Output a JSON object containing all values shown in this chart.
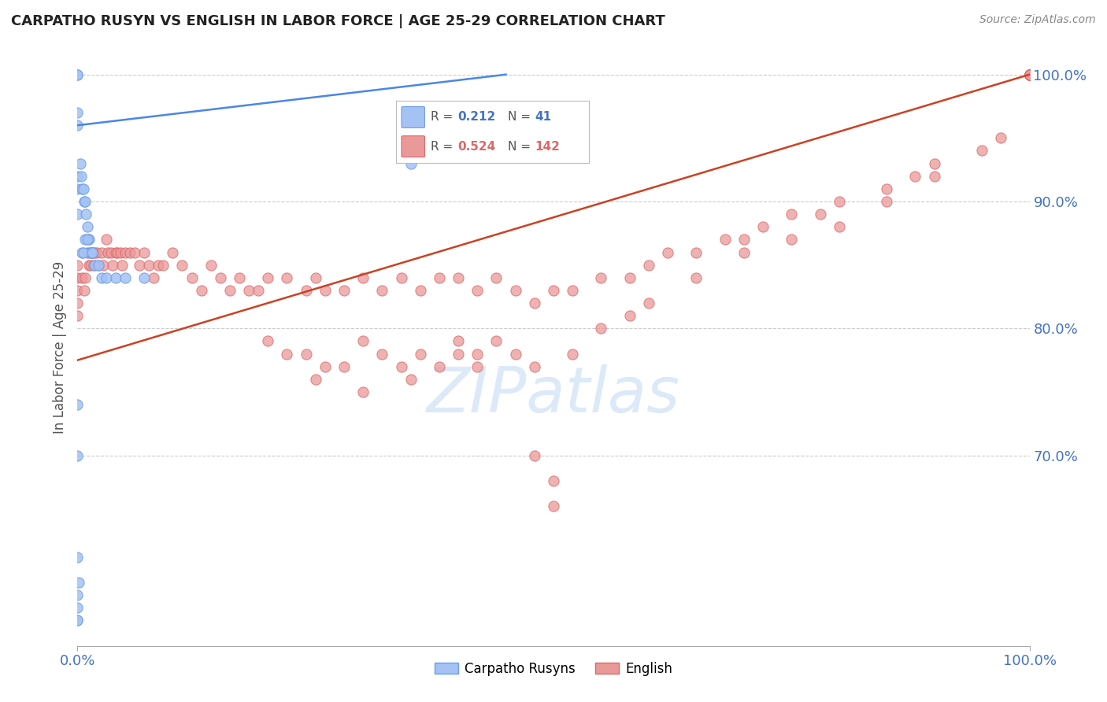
{
  "title": "CARPATHO RUSYN VS ENGLISH IN LABOR FORCE | AGE 25-29 CORRELATION CHART",
  "source": "Source: ZipAtlas.com",
  "ylabel": "In Labor Force | Age 25-29",
  "xlim": [
    0.0,
    1.0
  ],
  "ylim": [
    0.55,
    1.02
  ],
  "ytick_labels": [
    "100.0%",
    "90.0%",
    "80.0%",
    "70.0%"
  ],
  "ytick_values": [
    1.0,
    0.9,
    0.8,
    0.7
  ],
  "legend_blue_R": "0.212",
  "legend_blue_N": "41",
  "legend_pink_R": "0.524",
  "legend_pink_N": "142",
  "legend_label_blue": "Carpatho Rusyns",
  "legend_label_pink": "English",
  "blue_color": "#a4c2f4",
  "pink_color": "#ea9999",
  "blue_edge_color": "#6d9eeb",
  "pink_edge_color": "#e06666",
  "blue_line_color": "#4a86e8",
  "pink_line_color": "#cc4125",
  "axis_label_color": "#4472c4",
  "watermark_color": "#dce9f8",
  "background_color": "#ffffff",
  "grid_color": "#cccccc",
  "title_color": "#222222",
  "blue_x": [
    0.0,
    0.0,
    0.0,
    0.0,
    0.0,
    0.0,
    0.0,
    0.003,
    0.004,
    0.005,
    0.006,
    0.007,
    0.008,
    0.009,
    0.01,
    0.011,
    0.012,
    0.013,
    0.014,
    0.015,
    0.018,
    0.022,
    0.025,
    0.03,
    0.04,
    0.05,
    0.07,
    0.0,
    0.0,
    0.0,
    0.001,
    0.35,
    0.0,
    0.0,
    0.0,
    0.0,
    0.005,
    0.006,
    0.008,
    0.01,
    0.015
  ],
  "blue_y": [
    1.0,
    1.0,
    0.97,
    0.96,
    0.92,
    0.91,
    0.89,
    0.93,
    0.92,
    0.91,
    0.91,
    0.9,
    0.9,
    0.89,
    0.88,
    0.87,
    0.87,
    0.86,
    0.86,
    0.86,
    0.85,
    0.85,
    0.84,
    0.84,
    0.84,
    0.84,
    0.84,
    0.74,
    0.7,
    0.62,
    0.6,
    0.93,
    0.57,
    0.57,
    0.58,
    0.59,
    0.86,
    0.86,
    0.87,
    0.87,
    0.86
  ],
  "blue_line_x": [
    0.0,
    0.45
  ],
  "blue_line_y": [
    0.96,
    1.0
  ],
  "pink_x": [
    0.0,
    0.0,
    0.0,
    0.0,
    0.0,
    0.005,
    0.007,
    0.008,
    0.01,
    0.012,
    0.014,
    0.015,
    0.016,
    0.017,
    0.018,
    0.02,
    0.022,
    0.025,
    0.027,
    0.03,
    0.032,
    0.035,
    0.037,
    0.04,
    0.042,
    0.045,
    0.047,
    0.05,
    0.055,
    0.06,
    0.065,
    0.07,
    0.075,
    0.08,
    0.085,
    0.09,
    0.1,
    0.11,
    0.12,
    0.13,
    0.14,
    0.15,
    0.16,
    0.17,
    0.18,
    0.19,
    0.2,
    0.22,
    0.24,
    0.25,
    0.26,
    0.28,
    0.3,
    0.32,
    0.34,
    0.36,
    0.38,
    0.4,
    0.42,
    0.44,
    0.46,
    0.48,
    0.5,
    0.52,
    0.55,
    0.58,
    0.6,
    0.62,
    0.65,
    0.68,
    0.7,
    0.72,
    0.75,
    0.78,
    0.8,
    0.85,
    0.88,
    0.9,
    0.95,
    0.97,
    1.0,
    1.0,
    1.0,
    1.0,
    1.0,
    1.0,
    1.0,
    1.0,
    1.0,
    1.0,
    1.0,
    1.0,
    1.0,
    1.0,
    1.0,
    1.0,
    1.0,
    1.0,
    1.0,
    1.0,
    1.0,
    1.0,
    1.0,
    1.0,
    1.0,
    1.0,
    0.4,
    0.42,
    0.35,
    0.3,
    0.25,
    0.48,
    0.5,
    0.5,
    0.2,
    0.22,
    0.24,
    0.26,
    0.28,
    0.3,
    0.32,
    0.34,
    0.36,
    0.38,
    0.4,
    0.42,
    0.44,
    0.46,
    0.48,
    0.52,
    0.55,
    0.58,
    0.6,
    0.65,
    0.7,
    0.75,
    0.8,
    0.85,
    0.9
  ],
  "pink_y": [
    0.85,
    0.84,
    0.83,
    0.82,
    0.81,
    0.84,
    0.83,
    0.84,
    0.86,
    0.85,
    0.85,
    0.86,
    0.86,
    0.85,
    0.86,
    0.86,
    0.85,
    0.86,
    0.85,
    0.87,
    0.86,
    0.86,
    0.85,
    0.86,
    0.86,
    0.86,
    0.85,
    0.86,
    0.86,
    0.86,
    0.85,
    0.86,
    0.85,
    0.84,
    0.85,
    0.85,
    0.86,
    0.85,
    0.84,
    0.83,
    0.85,
    0.84,
    0.83,
    0.84,
    0.83,
    0.83,
    0.84,
    0.84,
    0.83,
    0.84,
    0.83,
    0.83,
    0.84,
    0.83,
    0.84,
    0.83,
    0.84,
    0.84,
    0.83,
    0.84,
    0.83,
    0.82,
    0.83,
    0.83,
    0.84,
    0.84,
    0.85,
    0.86,
    0.86,
    0.87,
    0.87,
    0.88,
    0.89,
    0.89,
    0.9,
    0.91,
    0.92,
    0.93,
    0.94,
    0.95,
    1.0,
    1.0,
    1.0,
    1.0,
    1.0,
    1.0,
    1.0,
    1.0,
    1.0,
    1.0,
    1.0,
    1.0,
    1.0,
    1.0,
    1.0,
    1.0,
    1.0,
    1.0,
    1.0,
    1.0,
    1.0,
    1.0,
    1.0,
    1.0,
    1.0,
    1.0,
    0.78,
    0.77,
    0.76,
    0.75,
    0.76,
    0.7,
    0.68,
    0.66,
    0.79,
    0.78,
    0.78,
    0.77,
    0.77,
    0.79,
    0.78,
    0.77,
    0.78,
    0.77,
    0.79,
    0.78,
    0.79,
    0.78,
    0.77,
    0.78,
    0.8,
    0.81,
    0.82,
    0.84,
    0.86,
    0.87,
    0.88,
    0.9,
    0.92
  ],
  "pink_line_x": [
    0.0,
    1.0
  ],
  "pink_line_y": [
    0.775,
    1.0
  ]
}
